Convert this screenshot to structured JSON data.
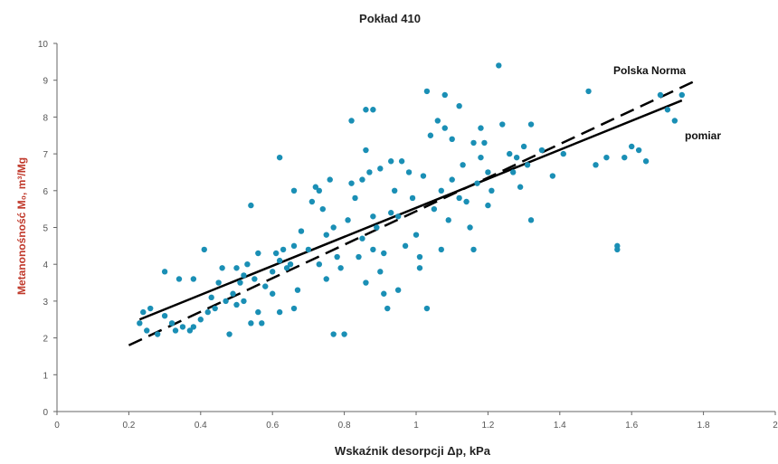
{
  "chart_data": {
    "type": "scatter",
    "title": "Pokład 410",
    "xlabel": "Wskaźnik desorpcji Δp, kPa",
    "ylabel": "Metanonośność M₀, m³/Mg",
    "xlim": [
      0,
      2
    ],
    "ylim": [
      0,
      10
    ],
    "x_ticks": [
      0,
      0.2,
      0.4,
      0.6,
      0.8,
      1,
      1.2,
      1.4,
      1.6,
      1.8,
      2
    ],
    "x_tick_labels": [
      "0",
      "0.2",
      "0.4",
      "0.6",
      "0.8",
      "1",
      "1.2",
      "1.4",
      "1.6",
      "1.8",
      "2"
    ],
    "y_ticks": [
      0,
      1,
      2,
      3,
      4,
      5,
      6,
      7,
      8,
      9,
      10
    ],
    "y_tick_labels": [
      "0",
      "1",
      "2",
      "3",
      "4",
      "5",
      "6",
      "7",
      "8",
      "9",
      "10"
    ],
    "grid": false,
    "marker_color": "#1a8fb5",
    "series": [
      {
        "kind": "scatter",
        "values": [
          [
            0.23,
            2.4
          ],
          [
            0.24,
            2.7
          ],
          [
            0.26,
            2.8
          ],
          [
            0.25,
            2.2
          ],
          [
            0.28,
            2.1
          ],
          [
            0.3,
            2.6
          ],
          [
            0.3,
            3.8
          ],
          [
            0.32,
            2.4
          ],
          [
            0.33,
            2.2
          ],
          [
            0.34,
            3.6
          ],
          [
            0.35,
            2.3
          ],
          [
            0.37,
            2.2
          ],
          [
            0.38,
            3.6
          ],
          [
            0.38,
            2.3
          ],
          [
            0.4,
            2.5
          ],
          [
            0.41,
            4.4
          ],
          [
            0.42,
            2.7
          ],
          [
            0.43,
            3.1
          ],
          [
            0.44,
            2.8
          ],
          [
            0.45,
            3.5
          ],
          [
            0.46,
            3.9
          ],
          [
            0.47,
            3.0
          ],
          [
            0.48,
            2.1
          ],
          [
            0.49,
            3.2
          ],
          [
            0.5,
            3.9
          ],
          [
            0.5,
            2.9
          ],
          [
            0.51,
            3.5
          ],
          [
            0.52,
            3.7
          ],
          [
            0.52,
            3.0
          ],
          [
            0.53,
            4.0
          ],
          [
            0.54,
            5.6
          ],
          [
            0.54,
            2.4
          ],
          [
            0.55,
            3.6
          ],
          [
            0.56,
            4.3
          ],
          [
            0.56,
            2.7
          ],
          [
            0.57,
            2.4
          ],
          [
            0.58,
            3.4
          ],
          [
            0.6,
            3.8
          ],
          [
            0.6,
            3.2
          ],
          [
            0.61,
            4.3
          ],
          [
            0.62,
            4.1
          ],
          [
            0.62,
            6.9
          ],
          [
            0.62,
            2.7
          ],
          [
            0.63,
            4.4
          ],
          [
            0.64,
            3.9
          ],
          [
            0.65,
            4.0
          ],
          [
            0.66,
            4.5
          ],
          [
            0.66,
            6.0
          ],
          [
            0.66,
            2.8
          ],
          [
            0.67,
            3.3
          ],
          [
            0.68,
            4.9
          ],
          [
            0.7,
            4.4
          ],
          [
            0.71,
            5.7
          ],
          [
            0.72,
            6.1
          ],
          [
            0.73,
            6.0
          ],
          [
            0.73,
            4.0
          ],
          [
            0.74,
            5.5
          ],
          [
            0.75,
            4.8
          ],
          [
            0.75,
            3.6
          ],
          [
            0.76,
            6.3
          ],
          [
            0.77,
            5.0
          ],
          [
            0.77,
            2.1
          ],
          [
            0.78,
            4.2
          ],
          [
            0.79,
            3.9
          ],
          [
            0.8,
            2.1
          ],
          [
            0.81,
            5.2
          ],
          [
            0.82,
            7.9
          ],
          [
            0.82,
            6.2
          ],
          [
            0.83,
            5.8
          ],
          [
            0.84,
            4.2
          ],
          [
            0.85,
            6.3
          ],
          [
            0.85,
            4.7
          ],
          [
            0.86,
            3.5
          ],
          [
            0.86,
            7.1
          ],
          [
            0.86,
            8.2
          ],
          [
            0.88,
            8.2
          ],
          [
            0.87,
            6.5
          ],
          [
            0.88,
            5.3
          ],
          [
            0.88,
            4.4
          ],
          [
            0.89,
            5.0
          ],
          [
            0.9,
            3.8
          ],
          [
            0.9,
            6.6
          ],
          [
            0.91,
            4.3
          ],
          [
            0.91,
            3.2
          ],
          [
            0.92,
            2.8
          ],
          [
            0.93,
            5.4
          ],
          [
            0.93,
            6.8
          ],
          [
            0.94,
            6.0
          ],
          [
            0.95,
            5.3
          ],
          [
            0.95,
            3.3
          ],
          [
            0.96,
            6.8
          ],
          [
            0.97,
            4.5
          ],
          [
            0.98,
            6.5
          ],
          [
            0.99,
            5.8
          ],
          [
            1.0,
            4.8
          ],
          [
            1.01,
            4.2
          ],
          [
            1.01,
            3.9
          ],
          [
            1.02,
            6.4
          ],
          [
            1.03,
            8.7
          ],
          [
            1.03,
            2.8
          ],
          [
            1.04,
            7.5
          ],
          [
            1.05,
            5.5
          ],
          [
            1.06,
            7.9
          ],
          [
            1.07,
            6.0
          ],
          [
            1.07,
            4.4
          ],
          [
            1.08,
            8.6
          ],
          [
            1.08,
            7.7
          ],
          [
            1.09,
            5.2
          ],
          [
            1.1,
            7.4
          ],
          [
            1.1,
            6.3
          ],
          [
            1.12,
            8.3
          ],
          [
            1.12,
            5.8
          ],
          [
            1.13,
            6.7
          ],
          [
            1.14,
            5.7
          ],
          [
            1.15,
            5.0
          ],
          [
            1.16,
            7.3
          ],
          [
            1.16,
            4.4
          ],
          [
            1.17,
            6.2
          ],
          [
            1.18,
            7.7
          ],
          [
            1.18,
            6.9
          ],
          [
            1.19,
            7.3
          ],
          [
            1.2,
            6.5
          ],
          [
            1.2,
            5.6
          ],
          [
            1.21,
            6.0
          ],
          [
            1.23,
            9.4
          ],
          [
            1.24,
            7.8
          ],
          [
            1.26,
            7.0
          ],
          [
            1.27,
            6.5
          ],
          [
            1.28,
            6.9
          ],
          [
            1.29,
            6.1
          ],
          [
            1.3,
            7.2
          ],
          [
            1.31,
            6.7
          ],
          [
            1.32,
            7.8
          ],
          [
            1.32,
            5.2
          ],
          [
            1.35,
            7.1
          ],
          [
            1.38,
            6.4
          ],
          [
            1.41,
            7.0
          ],
          [
            1.48,
            8.7
          ],
          [
            1.5,
            6.7
          ],
          [
            1.53,
            6.9
          ],
          [
            1.56,
            4.5
          ],
          [
            1.56,
            4.4
          ],
          [
            1.58,
            6.9
          ],
          [
            1.6,
            7.2
          ],
          [
            1.62,
            7.1
          ],
          [
            1.64,
            6.8
          ],
          [
            1.68,
            8.6
          ],
          [
            1.7,
            8.2
          ],
          [
            1.72,
            7.9
          ],
          [
            1.74,
            8.6
          ]
        ]
      },
      {
        "kind": "line",
        "name": "pomiar",
        "dash": "solid",
        "x": [
          0.23,
          1.74
        ],
        "y": [
          2.5,
          8.45
        ]
      },
      {
        "kind": "line",
        "name": "Polska Norma",
        "dash": "dashed",
        "x": [
          0.2,
          1.77
        ],
        "y": [
          1.8,
          8.95
        ]
      }
    ],
    "annotations": {
      "polska_norma": "Polska Norma",
      "pomiar": "pomiar"
    }
  }
}
